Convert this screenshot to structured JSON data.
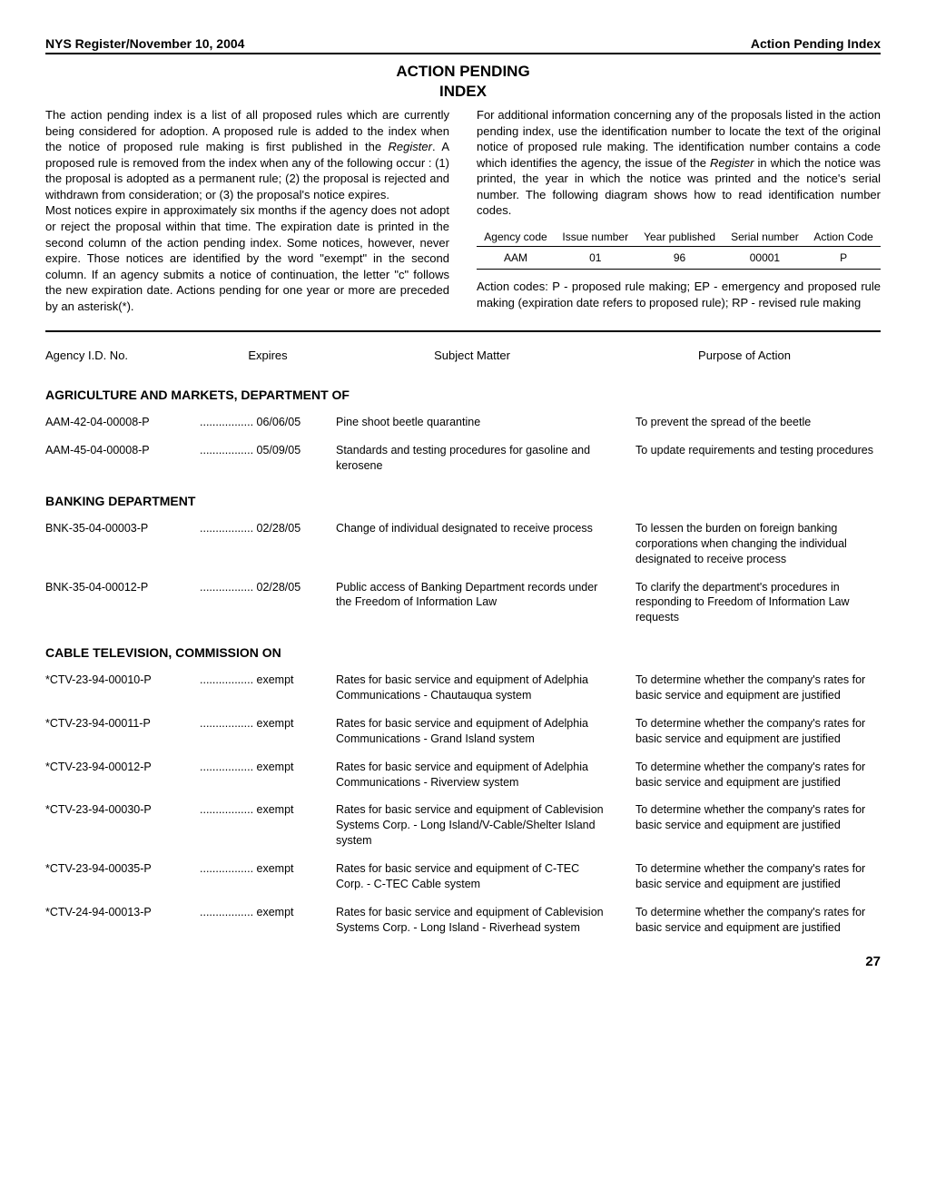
{
  "header": {
    "left": "NYS Register/November 10, 2004",
    "right": "Action Pending Index"
  },
  "title_line1": "ACTION PENDING",
  "title_line2": "INDEX",
  "intro_left_p1": "The action pending index is a list of all proposed rules which are currently being considered for adoption.  A proposed rule is added to the index when the notice of proposed rule making is first published in the ",
  "intro_left_p1_italic": "Register",
  "intro_left_p1_cont": ".  A proposed rule is removed from the index when any of the following occur : (1) the proposal is adopted as a permanent rule; (2) the proposal is rejected and withdrawn from consideration; or (3) the proposal's notice expires.",
  "intro_left_p2": "Most notices expire in approximately six months if the agency does not adopt or reject the proposal within that time.  The expiration date is printed in the second column of the action pending index.  Some notices, however, never expire.  Those notices are identified by the word \"exempt\" in the second column.  If an agency submits a notice of continuation, the letter \"c\" follows the new expiration date.  Actions pending for one year or more are preceded by an asterisk(*).",
  "intro_right_p1": "For additional information concerning any of the proposals listed in the action pending index, use the identification number to locate the text of the original notice of proposed rule making.  The identification number contains a code which identifies the agency, the issue of the ",
  "intro_right_p1_italic": "Register",
  "intro_right_p1_cont": " in which the notice was printed, the year in which the notice was printed and the notice's serial number.  The following diagram shows how to read identification number codes.",
  "id_table": {
    "headers": [
      "Agency code",
      "Issue number",
      "Year published",
      "Serial number",
      "Action Code"
    ],
    "row": [
      "AAM",
      "01",
      "96",
      "00001",
      "P"
    ]
  },
  "action_codes_text": "Action codes: P - proposed rule making; EP - emergency and proposed rule making (expiration date refers to proposed rule); RP - revised rule making",
  "col_headers": {
    "id": "Agency I.D. No.",
    "exp": "Expires",
    "subj": "Subject Matter",
    "purp": "Purpose of Action"
  },
  "sections": [
    {
      "name": "AGRICULTURE AND MARKETS, DEPARTMENT OF",
      "entries": [
        {
          "id": "AAM-42-04-00008-P",
          "exp": "06/06/05",
          "subj": "Pine shoot beetle quarantine",
          "purp": "To prevent the spread of the beetle"
        },
        {
          "id": "AAM-45-04-00008-P",
          "exp": "05/09/05",
          "subj": "Standards and testing procedures for gasoline and kerosene",
          "purp": "To update requirements and testing procedures"
        }
      ]
    },
    {
      "name": "BANKING DEPARTMENT",
      "entries": [
        {
          "id": "BNK-35-04-00003-P",
          "exp": "02/28/05",
          "subj": "Change of individual designated to receive process",
          "purp": "To lessen the burden on foreign banking corporations when changing the individual designated to receive process"
        },
        {
          "id": "BNK-35-04-00012-P",
          "exp": "02/28/05",
          "subj": "Public access of Banking Department records under the Freedom of Information Law",
          "purp": "To clarify the department's procedures in responding to Freedom of Information Law requests"
        }
      ]
    },
    {
      "name": "CABLE TELEVISION, COMMISSION ON",
      "entries": [
        {
          "id": "*CTV-23-94-00010-P",
          "exp": "exempt",
          "subj": "Rates for basic service and equipment of Adelphia Communications - Chautauqua system",
          "purp": "To determine whether the company's rates for basic service and equipment are justified"
        },
        {
          "id": "*CTV-23-94-00011-P",
          "exp": "exempt",
          "subj": "Rates for basic service and equipment of Adelphia Communications - Grand Island system",
          "purp": "To determine whether the company's rates for basic service and equipment are justified"
        },
        {
          "id": "*CTV-23-94-00012-P",
          "exp": "exempt",
          "subj": "Rates for basic service and equipment of Adelphia Communications - Riverview system",
          "purp": "To determine whether the company's rates for basic service and equipment are justified"
        },
        {
          "id": "*CTV-23-94-00030-P",
          "exp": "exempt",
          "subj": "Rates for basic service and equipment of Cablevision Systems Corp.  - Long Island/V-Cable/Shelter Island system",
          "purp": "To determine whether the company's rates for basic service and equipment are justified"
        },
        {
          "id": "*CTV-23-94-00035-P",
          "exp": "exempt",
          "subj": "Rates for basic service and equipment of C-TEC Corp. - C-TEC Cable system",
          "purp": "To determine whether the company's rates for basic service and equipment are justified"
        },
        {
          "id": "*CTV-24-94-00013-P",
          "exp": "exempt",
          "subj": "Rates for basic service and equipment of Cablevision Systems Corp. - Long Island - Riverhead system",
          "purp": "To determine whether the company's rates for basic service and equipment are justified"
        }
      ]
    }
  ],
  "page_number": "27"
}
